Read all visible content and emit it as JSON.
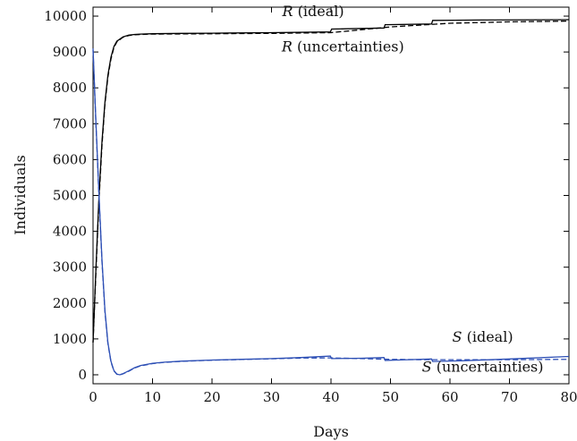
{
  "chart_data": {
    "type": "line",
    "xlabel": "Days",
    "ylabel": "Individuals",
    "xlim": [
      0,
      80
    ],
    "ylim": [
      -250,
      10250
    ],
    "xticks": [
      0,
      10,
      20,
      30,
      40,
      50,
      60,
      70,
      80
    ],
    "yticks": [
      0,
      1000,
      2000,
      3000,
      4000,
      5000,
      6000,
      7000,
      8000,
      9000,
      10000
    ],
    "grid": false,
    "legend": "none",
    "series": [
      {
        "key": "R_ideal",
        "color": "#000000",
        "dash": "solid",
        "x": [
          0,
          0.5,
          1,
          1.5,
          2,
          2.5,
          3,
          3.5,
          4,
          5,
          6,
          7,
          8,
          10,
          15,
          20,
          30,
          39.9,
          40.1,
          48.9,
          49.1,
          56.9,
          57.1,
          65,
          80
        ],
        "y": [
          900,
          3000,
          5000,
          6500,
          7600,
          8350,
          8850,
          9150,
          9300,
          9420,
          9470,
          9490,
          9500,
          9510,
          9520,
          9525,
          9540,
          9560,
          9640,
          9670,
          9760,
          9780,
          9880,
          9890,
          9900
        ]
      },
      {
        "key": "R_uncertainties",
        "color": "#000000",
        "dash": "dashed",
        "x": [
          0,
          0.5,
          1,
          1.5,
          2,
          2.5,
          3,
          3.5,
          4,
          5,
          6,
          7,
          8,
          10,
          15,
          20,
          30,
          40,
          50,
          60,
          70,
          80
        ],
        "y": [
          900,
          2900,
          4900,
          6400,
          7550,
          8300,
          8800,
          9120,
          9280,
          9410,
          9460,
          9480,
          9490,
          9500,
          9505,
          9510,
          9520,
          9540,
          9700,
          9800,
          9840,
          9860
        ]
      },
      {
        "key": "S_ideal",
        "color": "#2d4fb5",
        "dash": "solid",
        "x": [
          0,
          0.5,
          1,
          1.5,
          2,
          2.5,
          3,
          3.5,
          4,
          4.5,
          5,
          6,
          7,
          8,
          10,
          12,
          15,
          20,
          25,
          30,
          35,
          39.9,
          40.1,
          45,
          48.9,
          49.1,
          53,
          56.9,
          57.1,
          62,
          70,
          80
        ],
        "y": [
          9100,
          7000,
          5000,
          3200,
          1800,
          900,
          380,
          120,
          20,
          0,
          30,
          110,
          200,
          260,
          320,
          350,
          380,
          410,
          430,
          450,
          480,
          520,
          450,
          460,
          480,
          400,
          420,
          440,
          370,
          390,
          440,
          510
        ]
      },
      {
        "key": "S_uncertainties",
        "color": "#2d4fb5",
        "dash": "dashed",
        "x": [
          0,
          0.5,
          1,
          1.5,
          2,
          2.5,
          3,
          3.5,
          4,
          4.5,
          5,
          6,
          7,
          8,
          10,
          12,
          15,
          20,
          25,
          30,
          35,
          40,
          45,
          50,
          55,
          60,
          70,
          80
        ],
        "y": [
          9050,
          6950,
          4950,
          3150,
          1750,
          870,
          360,
          110,
          15,
          0,
          25,
          100,
          190,
          250,
          310,
          345,
          375,
          405,
          425,
          445,
          465,
          470,
          450,
          430,
          420,
          420,
          420,
          430
        ]
      }
    ],
    "annotations": [
      {
        "italic": "R",
        "text": " (ideal)",
        "x": 37,
        "y": 10000
      },
      {
        "italic": "R",
        "text": " (uncertainties)",
        "x": 42,
        "y": 9020
      },
      {
        "italic": "S",
        "text": " (ideal)",
        "x": 65.5,
        "y": 920
      },
      {
        "italic": "S",
        "text": " (uncertainties)",
        "x": 65.5,
        "y": 90
      }
    ]
  }
}
